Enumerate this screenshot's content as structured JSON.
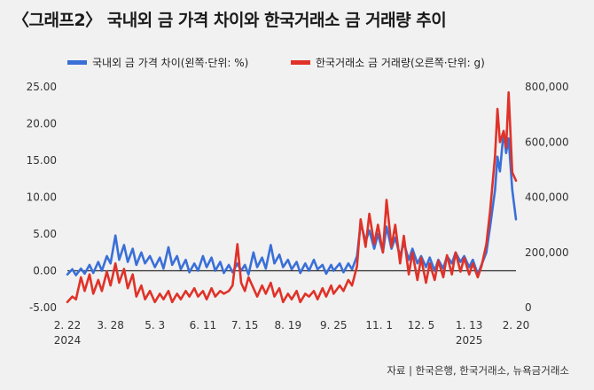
{
  "title": "〈그래프2〉 국내외 금 가격 차이와 한국거래소 금 거래량 추이",
  "source": "자료 | 한국은행, 한국거래소, 뉴욕금거래소",
  "chart_data": {
    "type": "line",
    "title": "〈그래프2〉 국내외 금 가격 차이와 한국거래소 금 거래량 추이",
    "x_tick_labels": [
      "2. 22",
      "3. 28",
      "5. 3",
      "6. 11",
      "7. 15",
      "8. 19",
      "9. 25",
      "11. 1",
      "12. 5",
      "1. 13",
      "2. 20"
    ],
    "x_year_labels": [
      {
        "at": "2. 22",
        "label": "2024"
      },
      {
        "at": "1. 13",
        "label": "2025"
      }
    ],
    "x_range": [
      "2024-02-22",
      "2025-02-20"
    ],
    "left_axis": {
      "ylim": [
        -5,
        25
      ],
      "ticks": [
        "25.00",
        "20.00",
        "15.00",
        "10.00",
        "5.00",
        "0.00",
        "-5.00"
      ]
    },
    "right_axis": {
      "ylim": [
        0,
        800000
      ],
      "ticks": [
        "800,000",
        "600,000",
        "400,000",
        "200,000",
        "0"
      ]
    },
    "legend_placement": "top",
    "grid": false,
    "zero_line": true,
    "series": [
      {
        "name": "국내외 금 가격 차이(왼쪽·단위: %)",
        "axis": "left",
        "color": "#3a6fd8",
        "points": [
          [
            "2024-02-22",
            -0.5
          ],
          [
            "2024-02-26",
            0.2
          ],
          [
            "2024-02-29",
            -0.6
          ],
          [
            "2024-03-04",
            0.3
          ],
          [
            "2024-03-07",
            -0.4
          ],
          [
            "2024-03-11",
            0.8
          ],
          [
            "2024-03-14",
            -0.3
          ],
          [
            "2024-03-18",
            1.2
          ],
          [
            "2024-03-21",
            0.0
          ],
          [
            "2024-03-25",
            2.0
          ],
          [
            "2024-03-28",
            1.0
          ],
          [
            "2024-04-01",
            4.8
          ],
          [
            "2024-04-04",
            1.5
          ],
          [
            "2024-04-08",
            3.5
          ],
          [
            "2024-04-11",
            1.2
          ],
          [
            "2024-04-15",
            3.0
          ],
          [
            "2024-04-18",
            0.8
          ],
          [
            "2024-04-22",
            2.5
          ],
          [
            "2024-04-25",
            1.0
          ],
          [
            "2024-04-29",
            2.0
          ],
          [
            "2024-05-03",
            0.5
          ],
          [
            "2024-05-07",
            1.8
          ],
          [
            "2024-05-10",
            0.3
          ],
          [
            "2024-05-14",
            3.2
          ],
          [
            "2024-05-17",
            0.8
          ],
          [
            "2024-05-21",
            2.0
          ],
          [
            "2024-05-24",
            0.2
          ],
          [
            "2024-05-28",
            1.5
          ],
          [
            "2024-05-31",
            -0.2
          ],
          [
            "2024-06-04",
            1.0
          ],
          [
            "2024-06-07",
            0.0
          ],
          [
            "2024-06-11",
            2.0
          ],
          [
            "2024-06-14",
            0.5
          ],
          [
            "2024-06-18",
            1.8
          ],
          [
            "2024-06-21",
            0.0
          ],
          [
            "2024-06-25",
            1.2
          ],
          [
            "2024-06-28",
            -0.3
          ],
          [
            "2024-07-02",
            0.8
          ],
          [
            "2024-07-05",
            -0.2
          ],
          [
            "2024-07-09",
            1.0
          ],
          [
            "2024-07-12",
            0.0
          ],
          [
            "2024-07-15",
            0.8
          ],
          [
            "2024-07-18",
            -0.5
          ],
          [
            "2024-07-22",
            2.5
          ],
          [
            "2024-07-25",
            0.5
          ],
          [
            "2024-07-29",
            1.8
          ],
          [
            "2024-08-01",
            0.3
          ],
          [
            "2024-08-05",
            3.5
          ],
          [
            "2024-08-08",
            1.0
          ],
          [
            "2024-08-12",
            2.2
          ],
          [
            "2024-08-15",
            0.5
          ],
          [
            "2024-08-19",
            1.5
          ],
          [
            "2024-08-22",
            0.2
          ],
          [
            "2024-08-26",
            1.2
          ],
          [
            "2024-08-29",
            -0.3
          ],
          [
            "2024-09-02",
            1.0
          ],
          [
            "2024-09-05",
            0.0
          ],
          [
            "2024-09-09",
            1.5
          ],
          [
            "2024-09-12",
            0.2
          ],
          [
            "2024-09-16",
            0.8
          ],
          [
            "2024-09-19",
            -0.4
          ],
          [
            "2024-09-23",
            0.8
          ],
          [
            "2024-09-25",
            0.0
          ],
          [
            "2024-09-30",
            1.0
          ],
          [
            "2024-10-03",
            -0.2
          ],
          [
            "2024-10-07",
            1.0
          ],
          [
            "2024-10-10",
            0.2
          ],
          [
            "2024-10-14",
            2.0
          ],
          [
            "2024-10-17",
            6.5
          ],
          [
            "2024-10-21",
            4.0
          ],
          [
            "2024-10-24",
            5.5
          ],
          [
            "2024-10-28",
            3.0
          ],
          [
            "2024-10-31",
            5.0
          ],
          [
            "2024-11-04",
            2.5
          ],
          [
            "2024-11-07",
            6.0
          ],
          [
            "2024-11-11",
            3.0
          ],
          [
            "2024-11-14",
            4.5
          ],
          [
            "2024-11-18",
            2.0
          ],
          [
            "2024-11-21",
            3.8
          ],
          [
            "2024-11-25",
            1.5
          ],
          [
            "2024-11-28",
            3.0
          ],
          [
            "2024-12-02",
            1.0
          ],
          [
            "2024-12-05",
            2.0
          ],
          [
            "2024-12-09",
            0.5
          ],
          [
            "2024-12-12",
            1.8
          ],
          [
            "2024-12-16",
            0.0
          ],
          [
            "2024-12-19",
            1.5
          ],
          [
            "2024-12-23",
            0.3
          ],
          [
            "2024-12-26",
            2.0
          ],
          [
            "2024-12-30",
            1.0
          ],
          [
            "2025-01-02",
            2.5
          ],
          [
            "2025-01-06",
            1.2
          ],
          [
            "2025-01-09",
            2.0
          ],
          [
            "2025-01-13",
            0.5
          ],
          [
            "2025-01-16",
            1.5
          ],
          [
            "2025-01-20",
            -0.5
          ],
          [
            "2025-01-23",
            0.8
          ],
          [
            "2025-01-27",
            2.5
          ],
          [
            "2025-01-30",
            6.0
          ],
          [
            "2025-02-03",
            11.0
          ],
          [
            "2025-02-05",
            15.5
          ],
          [
            "2025-02-07",
            13.5
          ],
          [
            "2025-02-10",
            19.0
          ],
          [
            "2025-02-12",
            16.0
          ],
          [
            "2025-02-14",
            18.0
          ],
          [
            "2025-02-17",
            11.0
          ],
          [
            "2025-02-20",
            7.0
          ]
        ]
      },
      {
        "name": "한국거래소 금 거래량(오른쪽·단위: g)",
        "axis": "right",
        "color": "#e03228",
        "points": [
          [
            "2024-02-22",
            20000
          ],
          [
            "2024-02-26",
            40000
          ],
          [
            "2024-02-29",
            30000
          ],
          [
            "2024-03-04",
            110000
          ],
          [
            "2024-03-07",
            60000
          ],
          [
            "2024-03-11",
            120000
          ],
          [
            "2024-03-14",
            50000
          ],
          [
            "2024-03-18",
            100000
          ],
          [
            "2024-03-21",
            60000
          ],
          [
            "2024-03-25",
            130000
          ],
          [
            "2024-03-28",
            80000
          ],
          [
            "2024-04-01",
            160000
          ],
          [
            "2024-04-04",
            90000
          ],
          [
            "2024-04-08",
            140000
          ],
          [
            "2024-04-11",
            70000
          ],
          [
            "2024-04-15",
            120000
          ],
          [
            "2024-04-18",
            40000
          ],
          [
            "2024-04-22",
            80000
          ],
          [
            "2024-04-25",
            30000
          ],
          [
            "2024-04-29",
            60000
          ],
          [
            "2024-05-03",
            20000
          ],
          [
            "2024-05-07",
            50000
          ],
          [
            "2024-05-10",
            30000
          ],
          [
            "2024-05-14",
            60000
          ],
          [
            "2024-05-17",
            20000
          ],
          [
            "2024-05-21",
            50000
          ],
          [
            "2024-05-24",
            30000
          ],
          [
            "2024-05-28",
            60000
          ],
          [
            "2024-05-31",
            40000
          ],
          [
            "2024-06-04",
            70000
          ],
          [
            "2024-06-07",
            40000
          ],
          [
            "2024-06-11",
            60000
          ],
          [
            "2024-06-14",
            30000
          ],
          [
            "2024-06-18",
            70000
          ],
          [
            "2024-06-21",
            40000
          ],
          [
            "2024-06-25",
            60000
          ],
          [
            "2024-06-28",
            50000
          ],
          [
            "2024-07-02",
            60000
          ],
          [
            "2024-07-05",
            80000
          ],
          [
            "2024-07-09",
            230000
          ],
          [
            "2024-07-12",
            90000
          ],
          [
            "2024-07-15",
            60000
          ],
          [
            "2024-07-18",
            110000
          ],
          [
            "2024-07-22",
            70000
          ],
          [
            "2024-07-25",
            40000
          ],
          [
            "2024-07-29",
            80000
          ],
          [
            "2024-08-01",
            50000
          ],
          [
            "2024-08-05",
            90000
          ],
          [
            "2024-08-08",
            40000
          ],
          [
            "2024-08-12",
            70000
          ],
          [
            "2024-08-15",
            20000
          ],
          [
            "2024-08-19",
            50000
          ],
          [
            "2024-08-22",
            30000
          ],
          [
            "2024-08-26",
            60000
          ],
          [
            "2024-08-29",
            20000
          ],
          [
            "2024-09-02",
            50000
          ],
          [
            "2024-09-05",
            40000
          ],
          [
            "2024-09-09",
            60000
          ],
          [
            "2024-09-12",
            30000
          ],
          [
            "2024-09-16",
            70000
          ],
          [
            "2024-09-19",
            40000
          ],
          [
            "2024-09-23",
            80000
          ],
          [
            "2024-09-25",
            50000
          ],
          [
            "2024-09-30",
            80000
          ],
          [
            "2024-10-03",
            60000
          ],
          [
            "2024-10-07",
            100000
          ],
          [
            "2024-10-10",
            80000
          ],
          [
            "2024-10-14",
            150000
          ],
          [
            "2024-10-17",
            320000
          ],
          [
            "2024-10-21",
            220000
          ],
          [
            "2024-10-24",
            340000
          ],
          [
            "2024-10-28",
            230000
          ],
          [
            "2024-10-31",
            300000
          ],
          [
            "2024-11-04",
            200000
          ],
          [
            "2024-11-07",
            390000
          ],
          [
            "2024-11-11",
            220000
          ],
          [
            "2024-11-14",
            300000
          ],
          [
            "2024-11-18",
            160000
          ],
          [
            "2024-11-21",
            260000
          ],
          [
            "2024-11-25",
            120000
          ],
          [
            "2024-11-28",
            200000
          ],
          [
            "2024-12-02",
            100000
          ],
          [
            "2024-12-05",
            180000
          ],
          [
            "2024-12-09",
            90000
          ],
          [
            "2024-12-12",
            160000
          ],
          [
            "2024-12-16",
            100000
          ],
          [
            "2024-12-19",
            170000
          ],
          [
            "2024-12-23",
            110000
          ],
          [
            "2024-12-26",
            190000
          ],
          [
            "2024-12-30",
            120000
          ],
          [
            "2025-01-02",
            200000
          ],
          [
            "2025-01-06",
            130000
          ],
          [
            "2025-01-09",
            180000
          ],
          [
            "2025-01-13",
            120000
          ],
          [
            "2025-01-16",
            160000
          ],
          [
            "2025-01-20",
            110000
          ],
          [
            "2025-01-23",
            150000
          ],
          [
            "2025-01-27",
            230000
          ],
          [
            "2025-01-30",
            350000
          ],
          [
            "2025-02-03",
            550000
          ],
          [
            "2025-02-05",
            720000
          ],
          [
            "2025-02-07",
            600000
          ],
          [
            "2025-02-10",
            640000
          ],
          [
            "2025-02-12",
            580000
          ],
          [
            "2025-02-14",
            780000
          ],
          [
            "2025-02-17",
            490000
          ],
          [
            "2025-02-20",
            460000
          ]
        ]
      }
    ]
  }
}
